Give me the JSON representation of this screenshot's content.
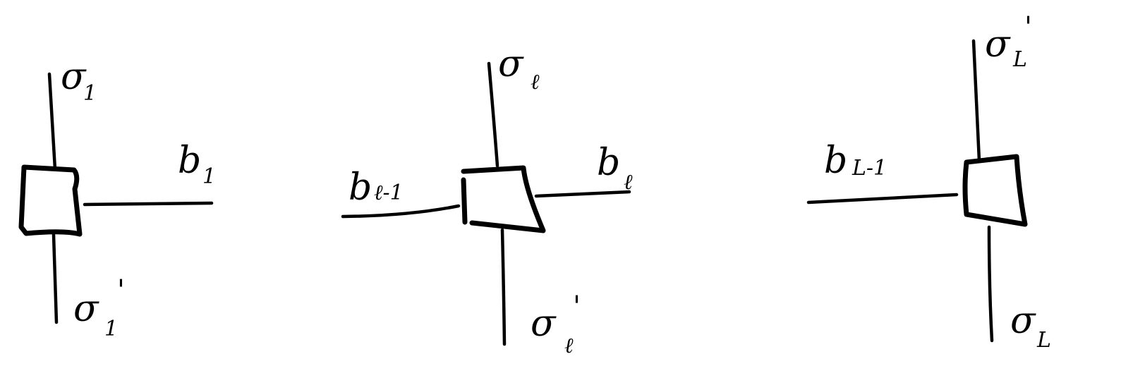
{
  "diagram": {
    "tensors": [
      {
        "name": "first-site",
        "top_label": {
          "symbol": "σ",
          "subscript": "1",
          "prime": ""
        },
        "bottom_label": {
          "symbol": "σ",
          "subscript": "1",
          "prime": "'"
        },
        "left_bond": null,
        "right_bond": {
          "symbol": "b",
          "subscript": "1"
        }
      },
      {
        "name": "middle-site",
        "top_label": {
          "symbol": "σ",
          "subscript": "ℓ",
          "prime": ""
        },
        "bottom_label": {
          "symbol": "σ",
          "subscript": "ℓ",
          "prime": "'"
        },
        "left_bond": {
          "symbol": "b",
          "subscript": "ℓ-1"
        },
        "right_bond": {
          "symbol": "b",
          "subscript": "ℓ"
        }
      },
      {
        "name": "last-site",
        "top_label": {
          "symbol": "σ",
          "subscript": "L",
          "prime": "'"
        },
        "bottom_label": {
          "symbol": "σ",
          "subscript": "L",
          "prime": ""
        },
        "left_bond": {
          "symbol": "b",
          "subscript": "L-1"
        },
        "right_bond": null
      }
    ],
    "stroke_color": "#000000",
    "background_color": "#ffffff"
  }
}
